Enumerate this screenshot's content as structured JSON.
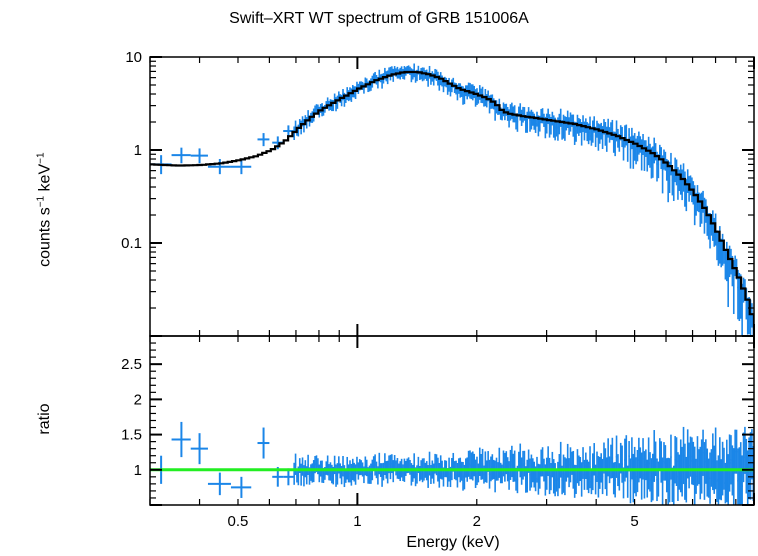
{
  "chart_data": [
    {
      "type": "scatter",
      "title": "Swift–XRT WT spectrum of GRB 151006A",
      "ylabel_parts": [
        "counts s",
        "−1",
        " keV",
        "−1"
      ],
      "xscale": "log",
      "yscale": "log",
      "xlim": [
        0.3,
        10
      ],
      "ylim": [
        0.01,
        10
      ],
      "ytick_labels": [
        "10",
        "1",
        "0.1"
      ],
      "ytick_values": [
        10,
        1,
        0.1
      ],
      "series": [
        {
          "kind": "data",
          "color": "#1b86e8",
          "points": [
            {
              "x": 0.32,
              "xlo": 0.3,
              "xhi": 0.34,
              "y": 0.7,
              "ylo": 0.55,
              "yhi": 0.88
            },
            {
              "x": 0.36,
              "xlo": 0.34,
              "xhi": 0.38,
              "y": 0.88,
              "ylo": 0.72,
              "yhi": 1.06
            },
            {
              "x": 0.4,
              "xlo": 0.38,
              "xhi": 0.42,
              "y": 0.87,
              "ylo": 0.72,
              "yhi": 1.04
            },
            {
              "x": 0.45,
              "xlo": 0.42,
              "xhi": 0.48,
              "y": 0.66,
              "ylo": 0.55,
              "yhi": 0.8
            },
            {
              "x": 0.51,
              "xlo": 0.48,
              "xhi": 0.54,
              "y": 0.66,
              "ylo": 0.55,
              "yhi": 0.8
            },
            {
              "x": 0.58,
              "xlo": 0.56,
              "xhi": 0.6,
              "y": 1.3,
              "ylo": 1.1,
              "yhi": 1.52
            },
            {
              "x": 0.63,
              "xlo": 0.61,
              "xhi": 0.65,
              "y": 1.2,
              "ylo": 1.02,
              "yhi": 1.4
            },
            {
              "x": 0.67,
              "xlo": 0.65,
              "xhi": 0.69,
              "y": 1.6,
              "ylo": 1.38,
              "yhi": 1.84
            }
          ],
          "dense_from": 0.69,
          "dense_to": 10.0,
          "dense_count": 330,
          "dense_scatter": 0.16
        },
        {
          "kind": "model",
          "color": "#000000",
          "x": [
            0.3,
            0.35,
            0.4,
            0.45,
            0.5,
            0.55,
            0.6,
            0.65,
            0.7,
            0.75,
            0.8,
            0.9,
            1.0,
            1.1,
            1.2,
            1.3,
            1.4,
            1.5,
            1.6,
            1.7,
            1.8,
            1.9,
            2.0,
            2.1,
            2.2,
            2.3,
            2.4,
            2.6,
            2.8,
            3.0,
            3.5,
            4.0,
            4.5,
            5.0,
            5.5,
            6.0,
            6.5,
            7.0,
            7.5,
            8.0,
            8.5,
            9.0,
            9.5,
            10.0
          ],
          "y": [
            0.7,
            0.68,
            0.69,
            0.72,
            0.78,
            0.86,
            1.0,
            1.25,
            1.7,
            2.2,
            2.7,
            3.6,
            4.6,
            5.6,
            6.4,
            6.9,
            6.9,
            6.5,
            5.9,
            5.1,
            4.5,
            4.2,
            3.9,
            3.6,
            3.2,
            2.6,
            2.45,
            2.3,
            2.2,
            2.1,
            1.9,
            1.65,
            1.4,
            1.15,
            0.92,
            0.7,
            0.5,
            0.34,
            0.22,
            0.13,
            0.075,
            0.045,
            0.025,
            0.012
          ]
        }
      ]
    },
    {
      "type": "scatter",
      "ylabel": "ratio",
      "xlabel": "Energy (keV)",
      "xscale": "log",
      "xlim": [
        0.3,
        10
      ],
      "ylim": [
        0.5,
        2.9
      ],
      "ytick_labels": [
        "2.5",
        "2",
        "1.5",
        "1"
      ],
      "ytick_values": [
        2.5,
        2,
        1.5,
        1
      ],
      "xtick_labels": [
        "0.5",
        "1",
        "2",
        "5"
      ],
      "xtick_values": [
        0.5,
        1,
        2,
        5
      ],
      "reference_line": {
        "y": 1.0,
        "color": "#22ee22"
      },
      "series": [
        {
          "kind": "data",
          "color": "#1b86e8",
          "points": [
            {
              "x": 0.32,
              "xlo": 0.3,
              "xhi": 0.34,
              "y": 1.0,
              "ylo": 0.8,
              "yhi": 1.2
            },
            {
              "x": 0.36,
              "xlo": 0.34,
              "xhi": 0.38,
              "y": 1.43,
              "ylo": 1.18,
              "yhi": 1.68
            },
            {
              "x": 0.4,
              "xlo": 0.38,
              "xhi": 0.42,
              "y": 1.3,
              "ylo": 1.08,
              "yhi": 1.52
            },
            {
              "x": 0.45,
              "xlo": 0.42,
              "xhi": 0.48,
              "y": 0.8,
              "ylo": 0.64,
              "yhi": 0.96
            },
            {
              "x": 0.51,
              "xlo": 0.48,
              "xhi": 0.54,
              "y": 0.75,
              "ylo": 0.6,
              "yhi": 0.9
            },
            {
              "x": 0.58,
              "xlo": 0.56,
              "xhi": 0.6,
              "y": 1.38,
              "ylo": 1.16,
              "yhi": 1.6
            },
            {
              "x": 0.63,
              "xlo": 0.61,
              "xhi": 0.65,
              "y": 0.9,
              "ylo": 0.76,
              "yhi": 1.04
            },
            {
              "x": 0.67,
              "xlo": 0.65,
              "xhi": 0.69,
              "y": 0.9,
              "ylo": 0.78,
              "yhi": 1.02
            }
          ],
          "dense_from": 0.69,
          "dense_to": 10.0,
          "dense_count": 330,
          "dense_scatter": 0.16
        }
      ]
    }
  ]
}
